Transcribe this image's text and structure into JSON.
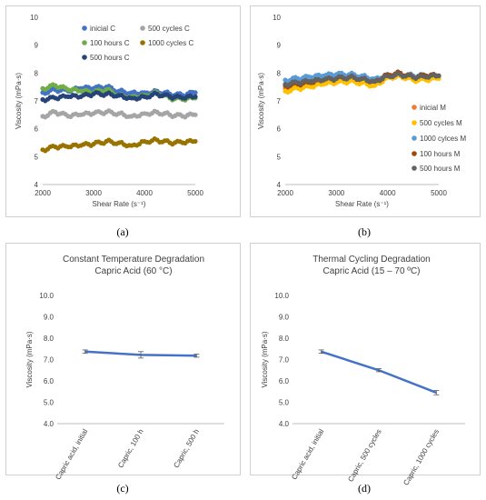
{
  "captions": [
    "(a)",
    "(b)",
    "(c)",
    "(d)"
  ],
  "chart_data": [
    {
      "id": "a",
      "type": "scatter",
      "xlabel": "Shear Rate (s⁻¹)",
      "ylabel": "Viscosity (mPa·s)",
      "xlim": [
        2000,
        5000
      ],
      "ylim": [
        4,
        10
      ],
      "xticks": [
        "2000",
        "3000",
        "4000",
        "5000"
      ],
      "yticks": [
        "4",
        "5",
        "6",
        "7",
        "8",
        "9",
        "10"
      ],
      "legend_position": "top",
      "series": [
        {
          "name": "inicial C",
          "color": "#4472c4",
          "x": [
            2000,
            2250,
            2500,
            2750,
            3000,
            3250,
            3500,
            3750,
            4000,
            4250,
            4500,
            4750,
            5000
          ],
          "y": [
            7.3,
            7.4,
            7.35,
            7.45,
            7.45,
            7.5,
            7.35,
            7.3,
            7.3,
            7.35,
            7.25,
            7.2,
            7.3
          ]
        },
        {
          "name": "500 cycles C",
          "color": "#a5a5a5",
          "x": [
            2000,
            2250,
            2500,
            2750,
            3000,
            3250,
            3500,
            3750,
            4000,
            4250,
            4500,
            4750,
            5000
          ],
          "y": [
            6.45,
            6.6,
            6.45,
            6.5,
            6.55,
            6.6,
            6.55,
            6.45,
            6.55,
            6.6,
            6.5,
            6.45,
            6.5
          ]
        },
        {
          "name": "100 hours C",
          "color": "#70ad47",
          "x": [
            2000,
            2250,
            2500,
            2750,
            3000,
            3250,
            3500,
            3750,
            4000,
            4250,
            4500,
            4750,
            5000
          ],
          "y": [
            7.45,
            7.55,
            7.4,
            7.35,
            7.3,
            7.4,
            7.2,
            7.15,
            7.2,
            7.3,
            7.1,
            7.05,
            7.1
          ]
        },
        {
          "name": "1000 cycles C",
          "color": "#997300",
          "x": [
            2000,
            2250,
            2500,
            2750,
            3000,
            3250,
            3500,
            3750,
            4000,
            4250,
            4500,
            4750,
            5000
          ],
          "y": [
            5.25,
            5.35,
            5.35,
            5.4,
            5.45,
            5.55,
            5.5,
            5.4,
            5.55,
            5.6,
            5.5,
            5.5,
            5.55
          ]
        },
        {
          "name": "500 hours C",
          "color": "#264478",
          "x": [
            2000,
            2250,
            2500,
            2750,
            3000,
            3250,
            3500,
            3750,
            4000,
            4250,
            4500,
            4750,
            5000
          ],
          "y": [
            7.05,
            7.1,
            7.15,
            7.15,
            7.25,
            7.25,
            7.2,
            7.1,
            7.15,
            7.25,
            7.15,
            7.1,
            7.15
          ]
        }
      ]
    },
    {
      "id": "b",
      "type": "scatter",
      "xlabel": "Shear Rate (s⁻¹)",
      "ylabel": "Viscosity (mPa·s)",
      "xlim": [
        2000,
        5000
      ],
      "ylim": [
        4,
        10
      ],
      "xticks": [
        "2000",
        "3000",
        "4000",
        "5000"
      ],
      "yticks": [
        "4",
        "5",
        "6",
        "7",
        "8",
        "9",
        "10"
      ],
      "legend_position": "bottom-right",
      "series": [
        {
          "name": "inicial M",
          "color": "#ed7d31",
          "x": [
            2000,
            2250,
            2500,
            2750,
            3000,
            3250,
            3500,
            3750,
            4000,
            4250,
            4500,
            4750,
            5000
          ],
          "y": [
            7.45,
            7.5,
            7.55,
            7.65,
            7.7,
            7.75,
            7.7,
            7.6,
            7.85,
            7.9,
            7.8,
            7.8,
            7.85
          ]
        },
        {
          "name": "500 cycles M",
          "color": "#ffc000",
          "x": [
            2000,
            2250,
            2500,
            2750,
            3000,
            3250,
            3500,
            3750,
            4000,
            4250,
            4500,
            4750,
            5000
          ],
          "y": [
            7.35,
            7.45,
            7.5,
            7.6,
            7.65,
            7.7,
            7.65,
            7.55,
            7.85,
            7.9,
            7.75,
            7.75,
            7.8
          ]
        },
        {
          "name": "1000 cylces M",
          "color": "#5b9bd5",
          "x": [
            2000,
            2250,
            2500,
            2750,
            3000,
            3250,
            3500,
            3750,
            4000,
            4250,
            4500,
            4750,
            5000
          ],
          "y": [
            7.75,
            7.8,
            7.85,
            7.9,
            7.95,
            7.95,
            7.9,
            7.8,
            7.95,
            7.95,
            7.9,
            7.9,
            7.9
          ]
        },
        {
          "name": "100 hours M",
          "color": "#9e480e",
          "x": [
            2000,
            2250,
            2500,
            2750,
            3000,
            3250,
            3500,
            3750,
            4000,
            4250,
            4500,
            4750,
            5000
          ],
          "y": [
            7.55,
            7.6,
            7.65,
            7.75,
            7.8,
            7.85,
            7.8,
            7.7,
            7.95,
            8.0,
            7.85,
            7.9,
            7.9
          ]
        },
        {
          "name": "500 hours M",
          "color": "#636363",
          "x": [
            2000,
            2250,
            2500,
            2750,
            3000,
            3250,
            3500,
            3750,
            4000,
            4250,
            4500,
            4750,
            5000
          ],
          "y": [
            7.6,
            7.65,
            7.7,
            7.75,
            7.8,
            7.85,
            7.8,
            7.7,
            7.9,
            7.95,
            7.85,
            7.85,
            7.9
          ]
        }
      ]
    },
    {
      "id": "c",
      "type": "line",
      "title": "Constant Temperature Degradation",
      "subtitle": "Capric Acid (60 °C)",
      "ylabel": "Viscosity (mPa·s)",
      "ylim": [
        4.0,
        10.0
      ],
      "yticks": [
        "4.0",
        "5.0",
        "6.0",
        "7.0",
        "8.0",
        "9.0",
        "10.0"
      ],
      "categories": [
        "Capric acid, initial",
        "Capric, 100 h",
        "Capric, 500 h"
      ],
      "values": [
        7.37,
        7.22,
        7.18
      ],
      "errors": [
        0.08,
        0.15,
        0.07
      ],
      "color": "#4472c4"
    },
    {
      "id": "d",
      "type": "line",
      "title": "Thermal Cycling Degradation",
      "subtitle": "Capric Acid (15 – 70 ºC)",
      "ylabel": "Viscosity (mPa·s)",
      "ylim": [
        4.0,
        10.0
      ],
      "yticks": [
        "4.0",
        "5.0",
        "6.0",
        "7.0",
        "8.0",
        "9.0",
        "10.0"
      ],
      "categories": [
        "Capric acid, initial",
        "Capric, 500 cycles",
        "Capric, 1000 cycles"
      ],
      "values": [
        7.37,
        6.5,
        5.45
      ],
      "errors": [
        0.08,
        0.07,
        0.1
      ],
      "color": "#4472c4"
    }
  ]
}
